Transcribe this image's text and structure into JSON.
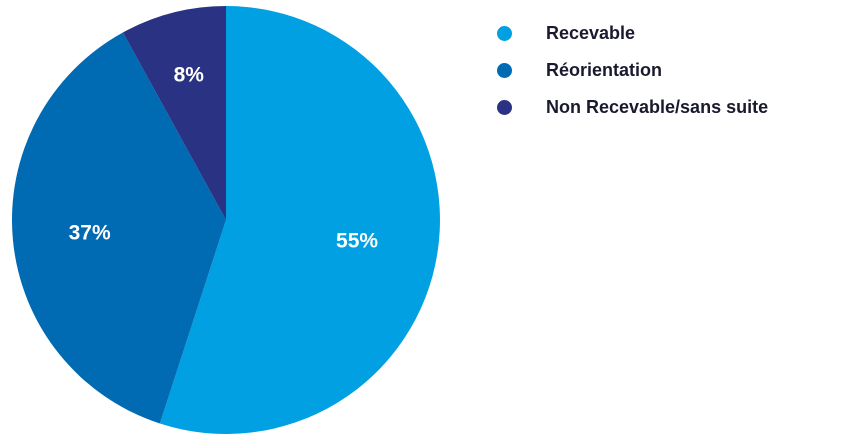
{
  "chart_data": {
    "type": "pie",
    "title": "",
    "slices": [
      {
        "label": "Recevable",
        "value": 55,
        "display": "55%",
        "color": "#00a0e2"
      },
      {
        "label": "Réorientation",
        "value": 37,
        "display": "37%",
        "color": "#006ab3"
      },
      {
        "label": "Non Recevable/sans suite",
        "value": 8,
        "display": "8%",
        "color": "#2a3383"
      }
    ],
    "legend_position": "top-right",
    "start_angle": "12 o'clock",
    "direction": "clockwise",
    "label_color": "#ffffff",
    "legend_text_color": "#1a1a2e"
  }
}
